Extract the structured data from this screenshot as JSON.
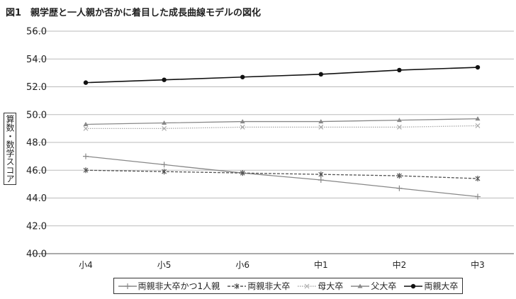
{
  "chart_data": {
    "type": "line",
    "title": "図1　親学歴と一人親か否かに着目した成長曲線モデルの図化",
    "ylabel": "算数・数学スコア",
    "xlabel": "",
    "categories": [
      "小4",
      "小5",
      "小6",
      "中1",
      "中2",
      "中3"
    ],
    "ylim": [
      40,
      56
    ],
    "yticks": [
      "40.0",
      "42.0",
      "44.0",
      "46.0",
      "48.0",
      "50.0",
      "52.0",
      "54.0",
      "56.0"
    ],
    "grid": true,
    "legend": "bottom",
    "series": [
      {
        "name": "両親非大卒かつ1人親",
        "values": [
          47.0,
          46.4,
          45.8,
          45.3,
          44.7,
          44.1
        ],
        "color": "#888888",
        "marker": "plus",
        "dash": "solid"
      },
      {
        "name": "両親非大卒",
        "values": [
          46.0,
          45.9,
          45.8,
          45.7,
          45.6,
          45.4
        ],
        "color": "#555555",
        "marker": "star",
        "dash": "dashed"
      },
      {
        "name": "母大卒",
        "values": [
          49.0,
          49.0,
          49.1,
          49.1,
          49.1,
          49.2
        ],
        "color": "#aaaaaa",
        "marker": "x",
        "dash": "dotted"
      },
      {
        "name": "父大卒",
        "values": [
          49.3,
          49.4,
          49.5,
          49.5,
          49.6,
          49.7
        ],
        "color": "#888888",
        "marker": "triangle",
        "dash": "solid"
      },
      {
        "name": "両親大卒",
        "values": [
          52.3,
          52.5,
          52.7,
          52.9,
          53.2,
          53.4
        ],
        "color": "#111111",
        "marker": "circle",
        "dash": "solid"
      }
    ]
  }
}
